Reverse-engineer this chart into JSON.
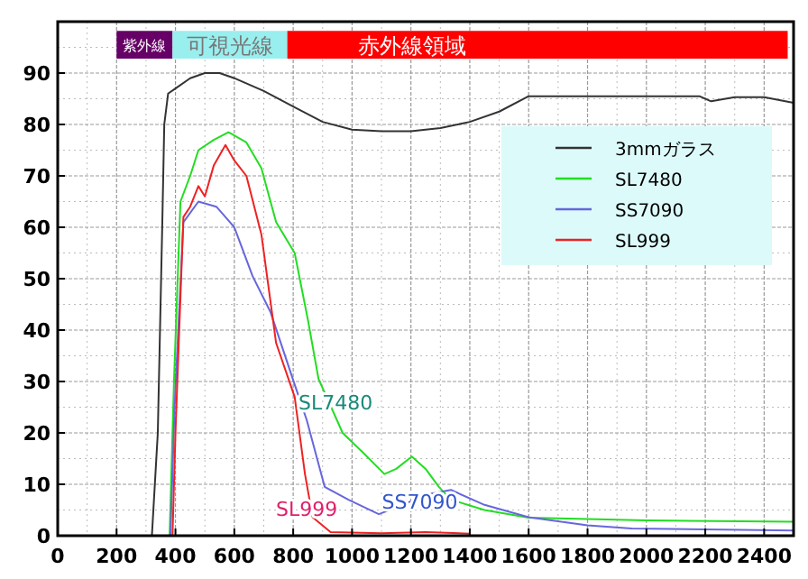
{
  "chart_data": {
    "type": "line",
    "xlim": [
      0,
      2500
    ],
    "ylim": [
      0,
      100
    ],
    "xticks": [
      0,
      200,
      400,
      600,
      800,
      1000,
      1200,
      1400,
      1600,
      1800,
      2000,
      2200,
      2400
    ],
    "yticks": [
      0,
      10,
      20,
      30,
      40,
      50,
      60,
      70,
      80,
      90
    ],
    "grid": true,
    "legend": "right",
    "line_style": "solid",
    "marker": "none",
    "series": [
      {
        "name": "3mmガラス",
        "color": "#333333",
        "x": [
          320,
          340,
          355,
          362,
          375,
          400,
          450,
          500,
          550,
          600,
          700,
          800,
          900,
          1000,
          1100,
          1200,
          1300,
          1400,
          1500,
          1600,
          1800,
          2000,
          2180,
          2220,
          2300,
          2400,
          2500
        ],
        "values": [
          0,
          20,
          60,
          80,
          86,
          87,
          89,
          90,
          90,
          89,
          86.5,
          83.5,
          80.5,
          79,
          78.7,
          78.7,
          79.3,
          80.5,
          82.5,
          85.5,
          85.5,
          85.5,
          85.5,
          84.5,
          85.3,
          85.3,
          84.2
        ]
      },
      {
        "name": "SL7480",
        "color": "#22dd22",
        "x": [
          380,
          395,
          417,
          450,
          478,
          530,
          580,
          641,
          692,
          742,
          805,
          850,
          886,
          968,
          1040,
          1110,
          1150,
          1203,
          1250,
          1295,
          1336,
          1450,
          1600,
          2000,
          2500
        ],
        "values": [
          0,
          30,
          65,
          70,
          75,
          77,
          78.5,
          76.5,
          71.5,
          61,
          55,
          42,
          30.5,
          20,
          16,
          12,
          13,
          15.4,
          13,
          9.5,
          7,
          5,
          3.5,
          3,
          2.7
        ]
      },
      {
        "name": "SS7090",
        "color": "#6666dd",
        "x": [
          383,
          397,
          427,
          478,
          539,
          600,
          662,
          723,
          805,
          846,
          907,
          988,
          1091,
          1172,
          1250,
          1336,
          1450,
          1600,
          1800,
          1950,
          2500
        ],
        "values": [
          0,
          25,
          61,
          65,
          64,
          60,
          50.5,
          43.5,
          29.4,
          22.5,
          9.5,
          7,
          4.2,
          6,
          8,
          8.9,
          6,
          3.6,
          2,
          1.4,
          1
        ]
      },
      {
        "name": "SL999",
        "color": "#ee2222",
        "x": [
          390,
          400,
          427,
          450,
          478,
          500,
          530,
          570,
          600,
          641,
          692,
          742,
          805,
          840,
          866,
          927,
          1100,
          1250,
          1400
        ],
        "values": [
          0,
          20,
          62,
          64,
          68,
          66,
          72,
          76,
          73,
          70,
          58.6,
          37.5,
          27,
          12,
          3.6,
          0.7,
          0.5,
          0.7,
          0.4
        ]
      }
    ],
    "bands": [
      {
        "axis": "x",
        "from": 200,
        "to": 390,
        "label": "紫外線",
        "color": "#660066"
      },
      {
        "axis": "x",
        "from": 390,
        "to": 780,
        "label": "可視光線",
        "color": "#99eeee"
      },
      {
        "axis": "x",
        "from": 780,
        "to": 2480,
        "label": "赤外線領域",
        "color": "#ff0000"
      }
    ],
    "annotations": [
      {
        "text": "SL7480",
        "x": 944,
        "y": 26
      },
      {
        "text": "SS7090",
        "x": 1230,
        "y": 6.7
      },
      {
        "text": "SL999",
        "x": 846,
        "y": 5.3
      }
    ]
  }
}
